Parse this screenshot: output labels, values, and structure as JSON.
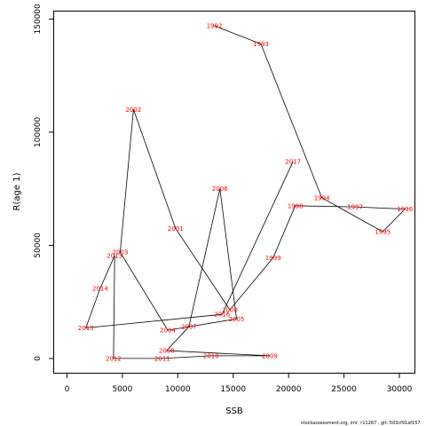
{
  "chart_data": {
    "type": "line",
    "title": "",
    "xlabel": "SSB",
    "ylabel": "R(age 1)",
    "xlim": [
      -1200,
      31400
    ],
    "ylim": [
      -6500,
      153500
    ],
    "xticks": [
      0,
      5000,
      10000,
      15000,
      20000,
      25000,
      30000
    ],
    "yticks": [
      0,
      50000,
      100000,
      150000
    ],
    "grid": false,
    "colors": {
      "line": "#000000",
      "labels": "#ff0000"
    },
    "points": [
      {
        "year": "1992",
        "x": 13300,
        "y": 147000
      },
      {
        "year": "1993",
        "x": 17500,
        "y": 139000
      },
      {
        "year": "1994",
        "x": 23000,
        "y": 71000
      },
      {
        "year": "1995",
        "x": 28500,
        "y": 56000
      },
      {
        "year": "1996",
        "x": 30500,
        "y": 66000
      },
      {
        "year": "1997",
        "x": 26000,
        "y": 67000
      },
      {
        "year": "1998",
        "x": 20600,
        "y": 67500
      },
      {
        "year": "1999",
        "x": 18600,
        "y": 44500
      },
      {
        "year": "2000",
        "x": 14700,
        "y": 21500
      },
      {
        "year": "2001",
        "x": 9800,
        "y": 57500
      },
      {
        "year": "2002",
        "x": 6000,
        "y": 110000
      },
      {
        "year": "2003",
        "x": 4800,
        "y": 47000
      },
      {
        "year": "2004",
        "x": 9100,
        "y": 12500
      },
      {
        "year": "2005",
        "x": 15300,
        "y": 17500
      },
      {
        "year": "2006",
        "x": 13800,
        "y": 75000
      },
      {
        "year": "2007",
        "x": 11000,
        "y": 14000
      },
      {
        "year": "2008",
        "x": 9000,
        "y": 3500
      },
      {
        "year": "2009",
        "x": 18300,
        "y": 1200
      },
      {
        "year": "2010",
        "x": 13000,
        "y": 1200
      },
      {
        "year": "2011",
        "x": 8600,
        "y": 0
      },
      {
        "year": "2012",
        "x": 4200,
        "y": 0
      },
      {
        "year": "2013",
        "x": 4300,
        "y": 45500
      },
      {
        "year": "2014",
        "x": 3000,
        "y": 31000
      },
      {
        "year": "2015",
        "x": 1700,
        "y": 13500
      },
      {
        "year": "2016",
        "x": 14000,
        "y": 19500
      },
      {
        "year": "2017",
        "x": 20400,
        "y": 87000
      }
    ]
  },
  "footer": {
    "text": "stockassessment.org, imr, r11267 , git: 503cf91af157"
  }
}
